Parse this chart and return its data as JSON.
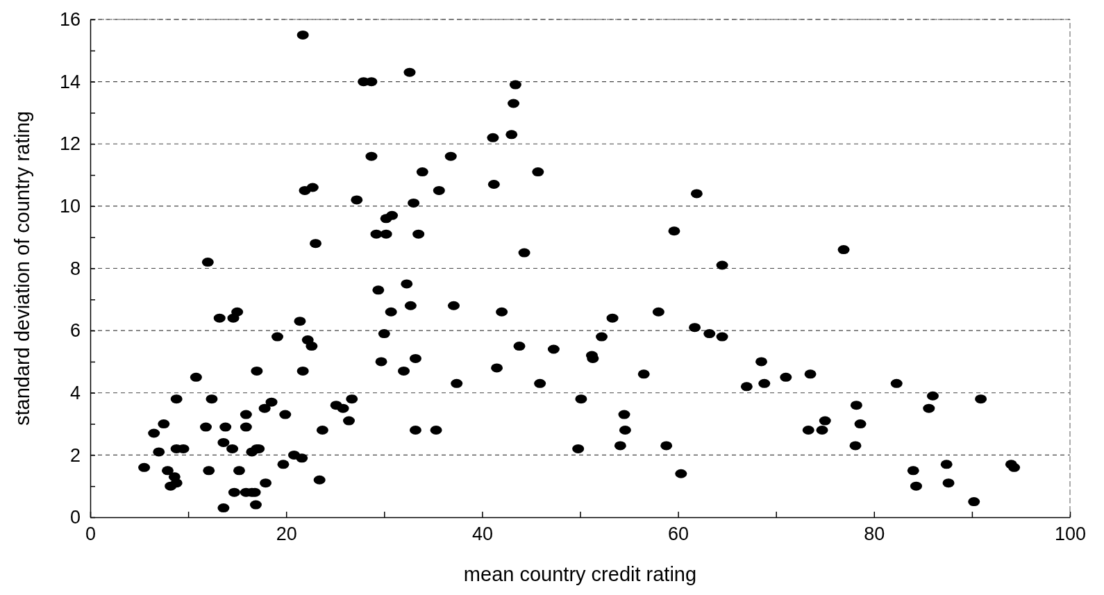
{
  "chart_data": {
    "type": "scatter",
    "xlabel": "mean country credit rating",
    "ylabel": "standard deviation of country rating",
    "xlim": [
      0,
      100
    ],
    "ylim": [
      0,
      16
    ],
    "xticks": [
      0,
      {
        "value": 10,
        "label": null
      },
      20,
      {
        "value": 30,
        "label": null
      },
      40,
      {
        "value": 50,
        "label": null
      },
      60,
      {
        "value": 70,
        "label": null
      },
      80,
      {
        "value": 90,
        "label": null
      },
      100
    ],
    "yticks": [
      0,
      {
        "value": 1,
        "label": null
      },
      2,
      {
        "value": 3,
        "label": null
      },
      4,
      {
        "value": 5,
        "label": null
      },
      6,
      {
        "value": 7,
        "label": null
      },
      8,
      {
        "value": 9,
        "label": null
      },
      10,
      {
        "value": 11,
        "label": null
      },
      12,
      {
        "value": 13,
        "label": null
      },
      14,
      {
        "value": 15,
        "label": null
      },
      16
    ],
    "grid": "y",
    "marker": "circle",
    "series": [
      {
        "color": "#000000",
        "x": [
          5.5,
          6.5,
          7.0,
          7.5,
          7.9,
          8.2,
          8.6,
          8.8,
          8.8,
          8.8,
          9.5,
          10.8,
          11.8,
          12.0,
          12.1,
          12.4,
          13.2,
          13.6,
          13.6,
          13.8,
          14.5,
          14.6,
          14.7,
          15.0,
          15.2,
          15.9,
          15.9,
          15.9,
          16.5,
          16.5,
          16.8,
          16.9,
          17.0,
          17.0,
          17.2,
          17.8,
          17.9,
          18.5,
          19.1,
          19.7,
          19.9,
          20.8,
          21.4,
          21.6,
          21.7,
          21.7,
          21.9,
          22.2,
          22.6,
          22.7,
          23.0,
          23.4,
          23.7,
          25.1,
          25.8,
          26.4,
          26.7,
          27.2,
          27.9,
          28.7,
          28.7,
          29.2,
          29.4,
          29.7,
          30.0,
          30.2,
          30.2,
          30.7,
          30.8,
          32.0,
          32.3,
          32.6,
          32.7,
          33.0,
          33.2,
          33.2,
          33.5,
          33.9,
          35.3,
          35.6,
          36.8,
          37.1,
          37.4,
          41.1,
          41.2,
          41.5,
          42.0,
          43.0,
          43.2,
          43.4,
          43.8,
          44.3,
          45.7,
          45.9,
          47.3,
          49.8,
          50.1,
          51.2,
          51.3,
          52.2,
          53.3,
          54.1,
          54.5,
          54.6,
          56.5,
          58.0,
          58.8,
          59.6,
          60.3,
          61.7,
          61.9,
          63.2,
          64.5,
          64.5,
          67.0,
          68.5,
          68.8,
          71.0,
          73.3,
          73.5,
          74.7,
          75.0,
          76.9,
          78.1,
          78.2,
          78.6,
          82.3,
          84.0,
          84.3,
          85.6,
          86.0,
          87.4,
          87.6,
          90.2,
          90.9,
          94.0,
          94.3
        ],
        "values": [
          1.6,
          2.7,
          2.1,
          3.0,
          1.5,
          1.0,
          1.3,
          2.2,
          3.8,
          1.1,
          2.2,
          4.5,
          2.9,
          8.2,
          1.5,
          3.8,
          6.4,
          0.3,
          2.4,
          2.9,
          2.2,
          6.4,
          0.8,
          6.6,
          1.5,
          2.9,
          3.3,
          0.8,
          2.1,
          0.8,
          0.8,
          0.4,
          4.7,
          2.2,
          2.2,
          3.5,
          1.1,
          3.7,
          5.8,
          1.7,
          3.3,
          2.0,
          6.3,
          1.9,
          4.7,
          15.5,
          10.5,
          5.7,
          5.5,
          10.6,
          8.8,
          1.2,
          2.8,
          3.6,
          3.5,
          3.1,
          3.8,
          10.2,
          14.0,
          14.0,
          11.6,
          9.1,
          7.3,
          5.0,
          5.9,
          9.6,
          9.1,
          6.6,
          9.7,
          4.7,
          7.5,
          14.3,
          6.8,
          10.1,
          5.1,
          2.8,
          9.1,
          11.1,
          2.8,
          10.5,
          11.6,
          6.8,
          4.3,
          12.2,
          10.7,
          4.8,
          6.6,
          12.3,
          13.3,
          13.9,
          5.5,
          8.5,
          11.1,
          4.3,
          5.4,
          2.2,
          3.8,
          5.2,
          5.1,
          5.8,
          6.4,
          2.3,
          3.3,
          2.8,
          4.6,
          6.6,
          2.3,
          9.2,
          1.4,
          6.1,
          10.4,
          5.9,
          8.1,
          5.8,
          4.2,
          5.0,
          4.3,
          4.5,
          2.8,
          4.6,
          2.8,
          3.1,
          8.6,
          2.3,
          3.6,
          3.0,
          4.3,
          1.5,
          1.0,
          3.5,
          3.9,
          1.7,
          1.1,
          0.5,
          3.8,
          1.7,
          1.6
        ]
      }
    ]
  }
}
